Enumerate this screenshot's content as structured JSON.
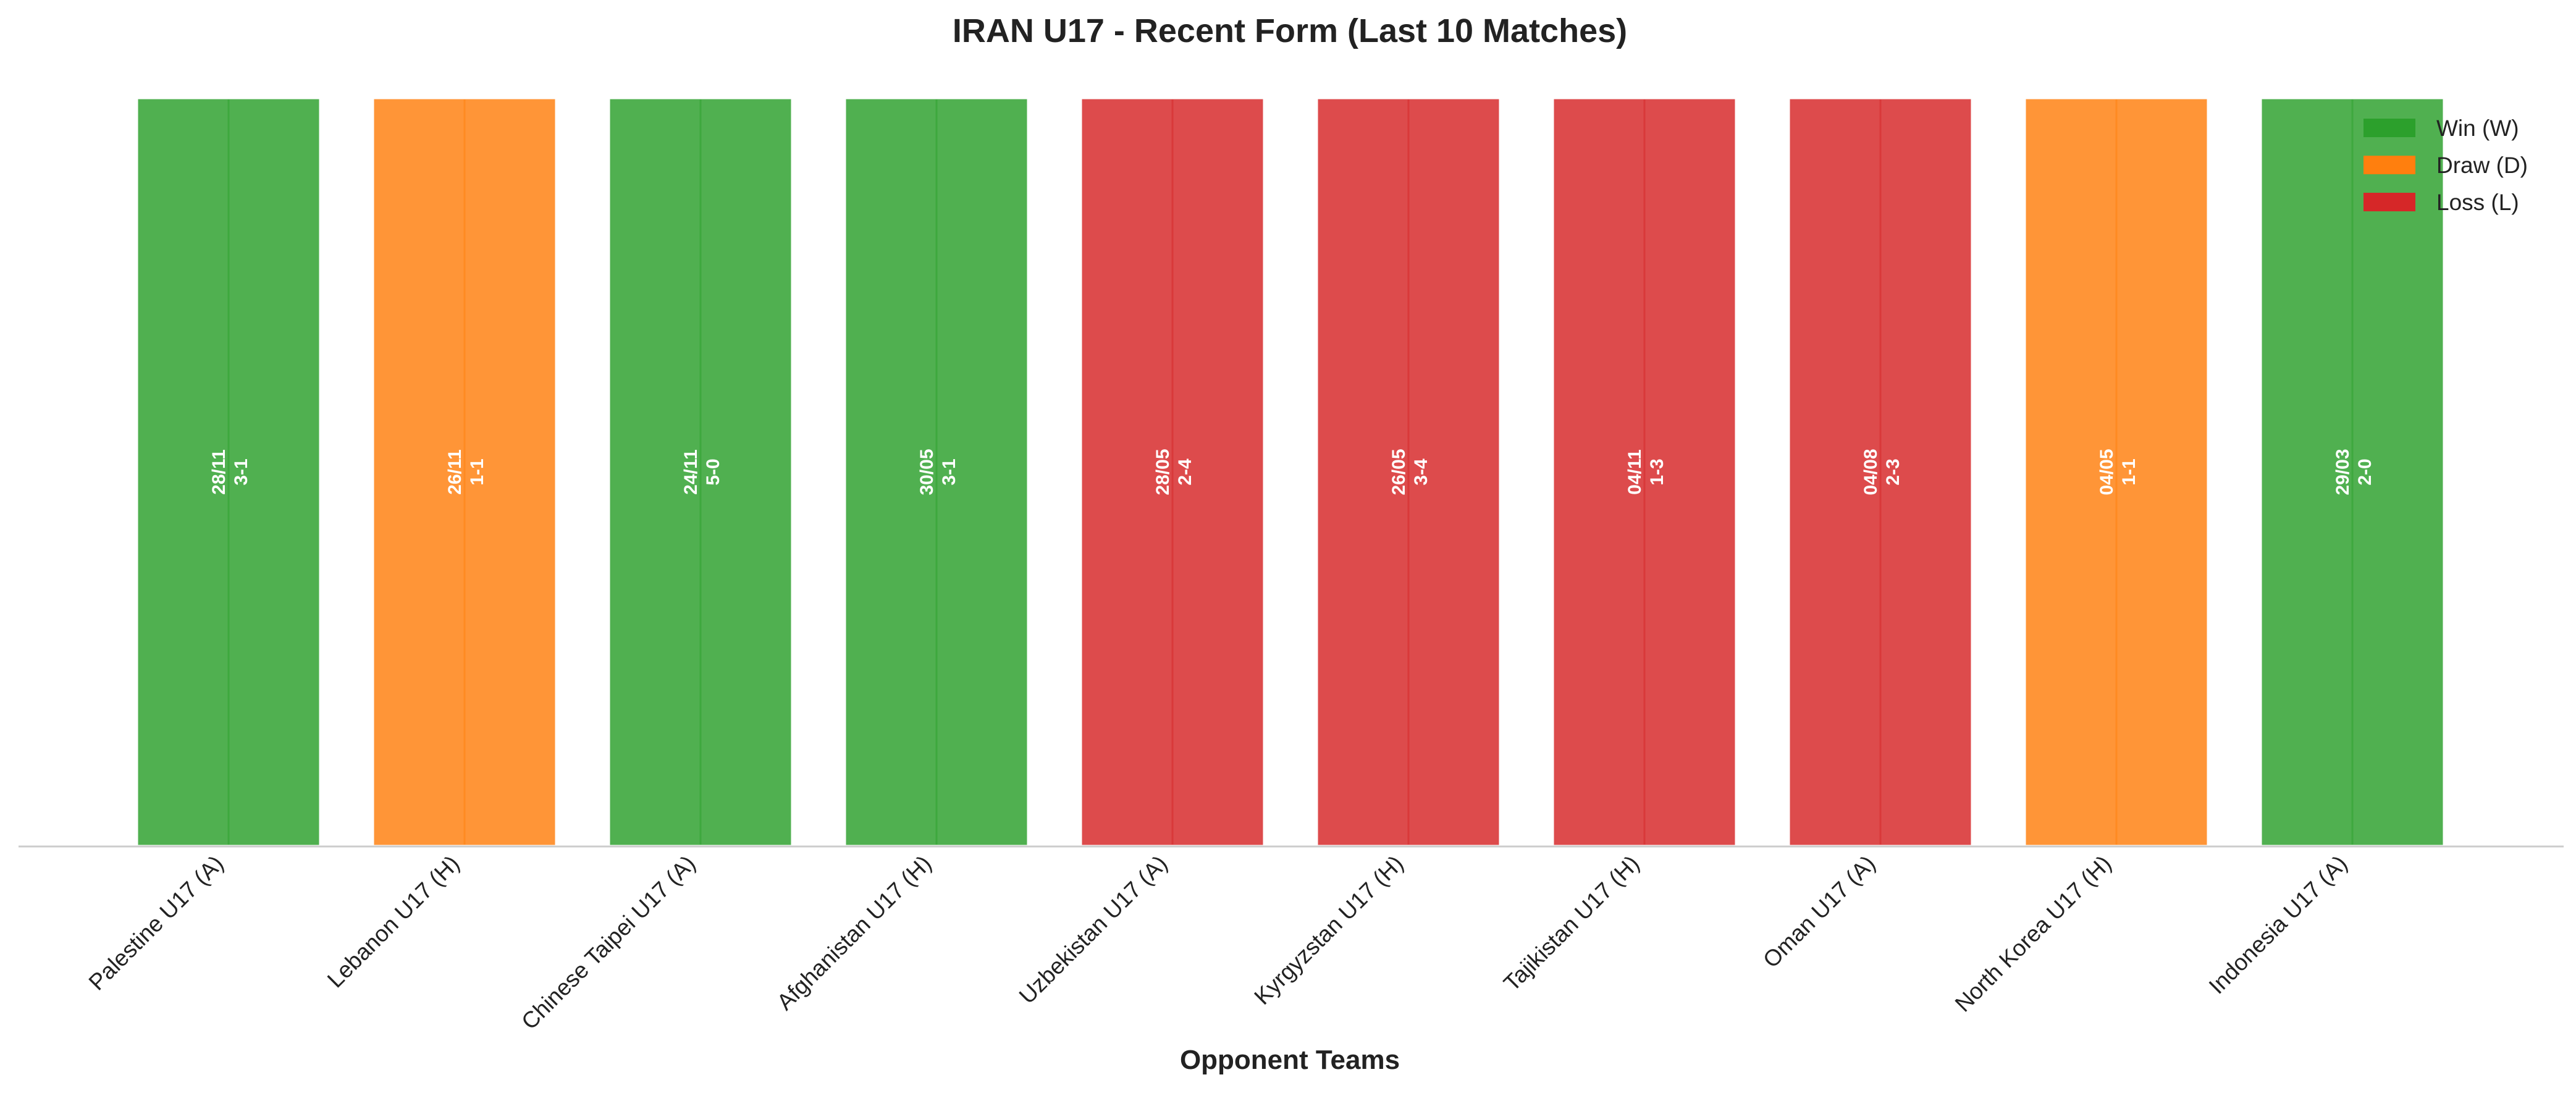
{
  "chart_data": {
    "type": "bar",
    "title": "IRAN U17 - Recent Form (Last 10 Matches)",
    "xlabel": "Opponent Teams",
    "ylabel": "",
    "ylim": [
      0,
      1
    ],
    "grid": false,
    "legend_placement": "top-right",
    "legend": [
      {
        "key": "W",
        "label": "Win (W)"
      },
      {
        "key": "D",
        "label": "Draw (D)"
      },
      {
        "key": "L",
        "label": "Loss (L)"
      }
    ],
    "colors": {
      "W": "#2ca02c",
      "D": "#ff7f0e",
      "L": "#d62728",
      "axis": "#cccccc",
      "bar_edge": "#ffffff",
      "bar_label": "#ffffff",
      "text": "#222222"
    },
    "categories": [
      "Palestine U17 (A)",
      "Lebanon U17 (H)",
      "Chinese Taipei U17 (A)",
      "Afghanistan U17 (H)",
      "Uzbekistan U17 (A)",
      "Kyrgyzstan U17 (H)",
      "Tajikistan U17 (H)",
      "Oman U17 (A)",
      "North Korea U17 (H)",
      "Indonesia U17 (A)"
    ],
    "values": [
      1,
      1,
      1,
      1,
      1,
      1,
      1,
      1,
      1,
      1
    ],
    "results": [
      "W",
      "D",
      "W",
      "W",
      "L",
      "L",
      "L",
      "L",
      "D",
      "W"
    ],
    "dates": [
      "28/11",
      "26/11",
      "24/11",
      "30/05",
      "28/05",
      "26/05",
      "04/11",
      "04/08",
      "04/05",
      "29/03"
    ],
    "scores": [
      "3-1",
      "1-1",
      "5-0",
      "3-1",
      "2-4",
      "3-4",
      "1-3",
      "2-3",
      "1-1",
      "2-0"
    ]
  }
}
